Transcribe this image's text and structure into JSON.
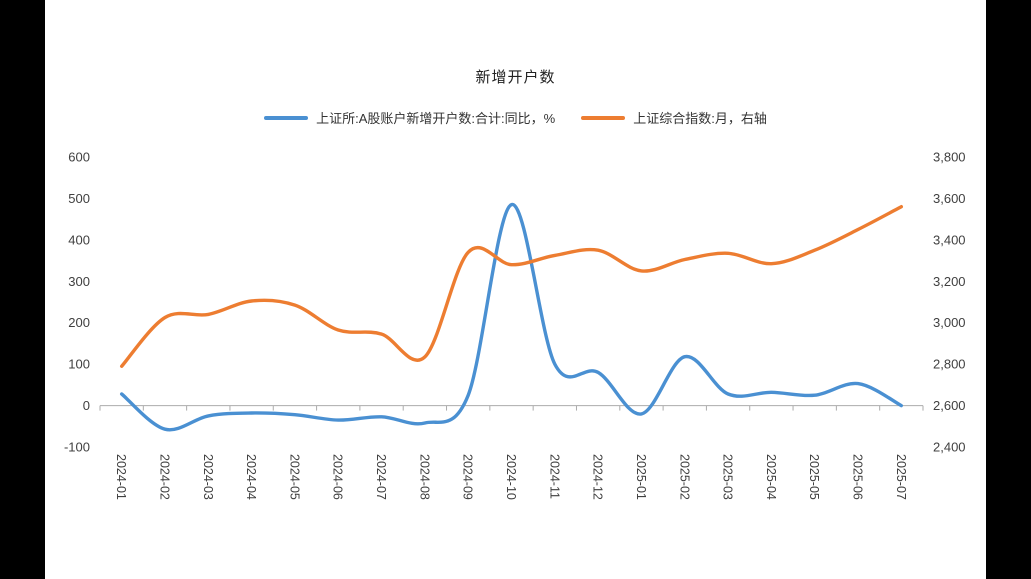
{
  "frame": {
    "side_bar_color": "#000000",
    "panel_background": "#ffffff"
  },
  "chart_data": {
    "type": "line",
    "title": "新增开户数",
    "legend_position": "top",
    "grid": false,
    "x_label_rotation": 90,
    "categories": [
      "2024-01",
      "2024-02",
      "2024-03",
      "2024-04",
      "2024-05",
      "2024-06",
      "2024-07",
      "2024-08",
      "2024-09",
      "2024-10",
      "2024-11",
      "2024-12",
      "2025-01",
      "2025-02",
      "2025-03",
      "2025-04",
      "2025-05",
      "2025-06",
      "2025-07"
    ],
    "series": [
      {
        "name": "上证所:A股账户新增开户数:合计:同比，%",
        "axis": "left",
        "color": "#4a90d2",
        "values": [
          28,
          -57,
          -25,
          -18,
          -22,
          -35,
          -27,
          -42,
          25,
          485,
          100,
          80,
          -20,
          118,
          28,
          32,
          25,
          53,
          0
        ]
      },
      {
        "name": "上证综合指数:月，右轴",
        "axis": "right",
        "color": "#ed7d31",
        "values": [
          2790,
          3025,
          3040,
          3105,
          3085,
          2965,
          2945,
          2835,
          3340,
          3280,
          3325,
          3350,
          3250,
          3305,
          3335,
          3285,
          3350,
          3450,
          3560
        ]
      }
    ],
    "left_axis": {
      "min": -100,
      "max": 600,
      "step": 100,
      "labels": [
        "600",
        "500",
        "400",
        "300",
        "200",
        "100",
        "0",
        "-100"
      ]
    },
    "right_axis": {
      "min": 2400,
      "max": 3800,
      "step": 200,
      "labels": [
        "3,800",
        "3,600",
        "3,400",
        "3,200",
        "3,000",
        "2,800",
        "2,600",
        "2,400"
      ]
    }
  }
}
